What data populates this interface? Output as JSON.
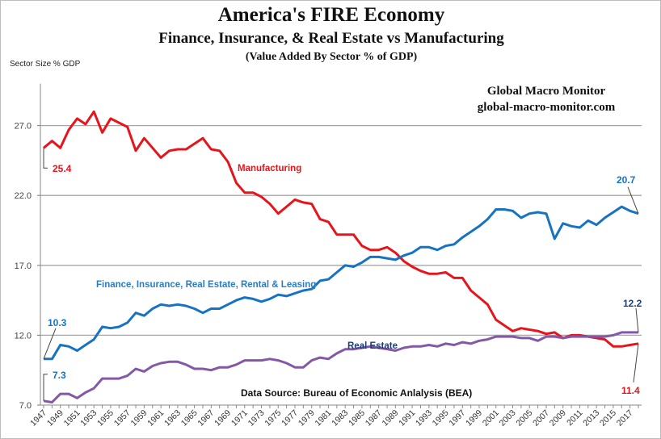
{
  "chart_data": {
    "type": "line",
    "title": "America's FIRE Economy",
    "subtitle": "Finance, Insurance, & Real Estate vs Manufacturing",
    "subtitle2": "(Value Added By Sector % of GDP)",
    "ylabel": "Sector Size % GDP",
    "xlabel": "",
    "ylim": [
      7.0,
      30.0
    ],
    "yticks": [
      "7.0",
      "12.0",
      "17.0",
      "22.0",
      "27.0"
    ],
    "ytick_values": [
      7,
      12,
      17,
      22,
      27
    ],
    "grid": true,
    "x_start": 1947,
    "x_end": 2018,
    "xtick_labels": [
      "1947",
      "1949",
      "1951",
      "1953",
      "1955",
      "1957",
      "1959",
      "1961",
      "1963",
      "1965",
      "1967",
      "1969",
      "1971",
      "1973",
      "1975",
      "1977",
      "1979",
      "1981",
      "1983",
      "1985",
      "1987",
      "1989",
      "1991",
      "1993",
      "1995",
      "1997",
      "1999",
      "2001",
      "2003",
      "2005",
      "2007",
      "2009",
      "2011",
      "2013",
      "2015",
      "2017"
    ],
    "series": [
      {
        "name": "Manufacturing",
        "color": "#e8141b",
        "label_text": "Manufacturing",
        "start_label": "25.4",
        "end_label": "11.4",
        "values": [
          25.4,
          25.9,
          25.4,
          26.7,
          27.5,
          27.1,
          28.0,
          26.5,
          27.5,
          27.2,
          26.9,
          25.2,
          26.1,
          25.4,
          24.7,
          25.2,
          25.3,
          25.3,
          25.7,
          26.1,
          25.3,
          25.2,
          24.4,
          22.9,
          22.2,
          22.2,
          21.9,
          21.4,
          20.7,
          21.2,
          21.7,
          21.5,
          21.4,
          20.3,
          20.1,
          19.2,
          19.2,
          19.2,
          18.4,
          18.1,
          18.1,
          18.3,
          17.9,
          17.3,
          16.9,
          16.6,
          16.4,
          16.4,
          16.5,
          16.1,
          16.1,
          15.2,
          14.7,
          14.2,
          13.1,
          12.7,
          12.3,
          12.5,
          12.4,
          12.3,
          12.1,
          12.2,
          11.8,
          12.0,
          12.0,
          11.9,
          11.8,
          11.7,
          11.2,
          11.2,
          11.3,
          11.4
        ]
      },
      {
        "name": "Finance, Insurance, Real Estate, Rental & Leasing",
        "color": "#1673c3",
        "label_text": "Finance, Insurance, Real Estate, Rental  & Leasing",
        "start_label": "10.3",
        "end_label": "20.7",
        "values": [
          10.3,
          10.3,
          11.3,
          11.2,
          10.9,
          11.3,
          11.7,
          12.6,
          12.5,
          12.6,
          12.9,
          13.6,
          13.4,
          13.9,
          14.2,
          14.1,
          14.2,
          14.1,
          13.9,
          13.6,
          13.9,
          13.9,
          14.2,
          14.5,
          14.7,
          14.6,
          14.4,
          14.6,
          14.9,
          14.8,
          15.0,
          15.2,
          15.3,
          15.9,
          16.0,
          16.5,
          17.0,
          16.9,
          17.2,
          17.6,
          17.6,
          17.5,
          17.4,
          17.7,
          17.9,
          18.3,
          18.3,
          18.1,
          18.4,
          18.5,
          19.0,
          19.4,
          19.8,
          20.3,
          21.0,
          21.0,
          20.9,
          20.4,
          20.7,
          20.8,
          20.7,
          18.9,
          20.0,
          19.8,
          19.7,
          20.2,
          19.9,
          20.4,
          20.8,
          21.2,
          20.9,
          20.7
        ]
      },
      {
        "name": "Real Estate",
        "color": "#8358a6",
        "label_text": "Real Estate",
        "start_label": "7.3",
        "end_label": "12.2",
        "values": [
          7.3,
          7.2,
          7.8,
          7.8,
          7.5,
          7.9,
          8.2,
          8.9,
          8.9,
          8.9,
          9.1,
          9.6,
          9.4,
          9.8,
          10.0,
          10.1,
          10.1,
          9.9,
          9.6,
          9.6,
          9.5,
          9.7,
          9.7,
          9.9,
          10.2,
          10.2,
          10.2,
          10.3,
          10.2,
          10.0,
          9.7,
          9.7,
          10.2,
          10.4,
          10.3,
          10.7,
          11.0,
          11.0,
          11.1,
          11.2,
          11.1,
          11.0,
          10.9,
          11.1,
          11.2,
          11.2,
          11.3,
          11.2,
          11.4,
          11.3,
          11.5,
          11.4,
          11.6,
          11.7,
          11.9,
          11.9,
          11.9,
          11.8,
          11.8,
          11.6,
          11.9,
          11.9,
          11.8,
          11.9,
          11.9,
          11.9,
          11.9,
          11.9,
          12.0,
          12.2,
          12.2,
          12.2
        ]
      }
    ],
    "annotations": {
      "brand_line1": "Global Macro Monitor",
      "brand_line2": "global-macro-monitor.com",
      "source": "Data Source:  Bureau of Economic Anlalysis (BEA)"
    }
  }
}
